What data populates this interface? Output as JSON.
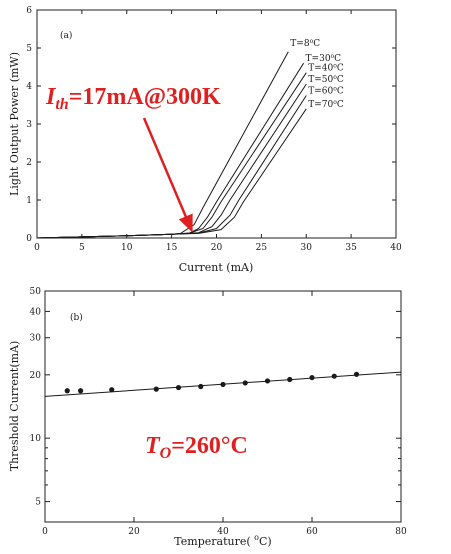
{
  "colors": {
    "annotation": "#e02020",
    "axes": "#222222",
    "curves": "#1a1a1a"
  },
  "chart_data": [
    {
      "type": "line",
      "panel_label": "(a)",
      "xlabel": "Current (mA)",
      "ylabel": "Light Output Power (mW)",
      "xlim": [
        0,
        40
      ],
      "ylim": [
        0,
        6
      ],
      "xticks": [
        0,
        5,
        10,
        15,
        20,
        25,
        30,
        35,
        40
      ],
      "yticks": [
        0,
        1,
        2,
        3,
        4,
        5,
        6
      ],
      "grid": false,
      "series": [
        {
          "name": "T=8°C",
          "label": "T=8",
          "x": [
            0,
            5,
            10,
            15,
            16,
            17.5,
            18.5,
            28
          ],
          "y": [
            0,
            0.03,
            0.06,
            0.1,
            0.12,
            0.35,
            0.8,
            4.9
          ]
        },
        {
          "name": "T=30°C",
          "label": "T=30",
          "x": [
            0,
            5,
            10,
            15,
            17,
            18,
            19,
            20,
            29.7
          ],
          "y": [
            0,
            0.03,
            0.06,
            0.1,
            0.13,
            0.25,
            0.55,
            0.95,
            4.6
          ]
        },
        {
          "name": "T=40°C",
          "label": "T=40",
          "x": [
            0,
            5,
            10,
            15,
            17,
            18.5,
            19.5,
            20.5,
            30
          ],
          "y": [
            0,
            0.03,
            0.06,
            0.1,
            0.13,
            0.25,
            0.55,
            0.95,
            4.35
          ]
        },
        {
          "name": "T=50°C",
          "label": "T=50",
          "x": [
            0,
            5,
            10,
            15,
            18,
            19.5,
            20.5,
            21.5,
            30
          ],
          "y": [
            0,
            0.03,
            0.06,
            0.1,
            0.14,
            0.3,
            0.6,
            1.0,
            4.05
          ]
        },
        {
          "name": "T=60°C",
          "label": "T=60",
          "x": [
            0,
            5,
            10,
            15,
            18,
            20,
            21.5,
            22.5,
            30
          ],
          "y": [
            0,
            0.03,
            0.06,
            0.1,
            0.13,
            0.25,
            0.6,
            1.0,
            3.75
          ]
        },
        {
          "name": "T=70°C",
          "label": "T=70",
          "x": [
            0,
            5,
            10,
            15,
            18,
            20.5,
            22,
            23,
            30
          ],
          "y": [
            0,
            0.03,
            0.06,
            0.1,
            0.12,
            0.22,
            0.55,
            0.95,
            3.4
          ]
        }
      ],
      "annotation": {
        "text_main": "I",
        "text_sub": "th",
        "text_rest": "=17mA@300K",
        "arrow_target": [
          17,
          0.1
        ]
      }
    },
    {
      "type": "scatter",
      "panel_label": "(b)",
      "xlabel": "Temperature( ",
      "xlabel_sup": "o",
      "xlabel_end": "C)",
      "ylabel": "Threshold Current(mA)",
      "xlim": [
        0,
        80
      ],
      "ylim": [
        4,
        50
      ],
      "yscale": "log",
      "xticks": [
        0,
        20,
        40,
        60,
        80
      ],
      "yticks_major": [
        5,
        10,
        20,
        30,
        40,
        50
      ],
      "yticks_minor": [
        4,
        6,
        7,
        8,
        9
      ],
      "grid": false,
      "points": {
        "x": [
          5,
          8,
          15,
          25,
          30,
          35,
          40,
          45,
          50,
          55,
          60,
          65,
          70
        ],
        "y": [
          16.8,
          16.8,
          17.0,
          17.1,
          17.4,
          17.6,
          18.0,
          18.3,
          18.7,
          19.0,
          19.4,
          19.7,
          20.1
        ]
      },
      "fit_line": {
        "x": [
          0,
          80
        ],
        "y": [
          15.8,
          20.6
        ]
      },
      "annotation": {
        "text_main": "T",
        "text_sub": "O",
        "text_rest": "=260°C"
      }
    }
  ]
}
